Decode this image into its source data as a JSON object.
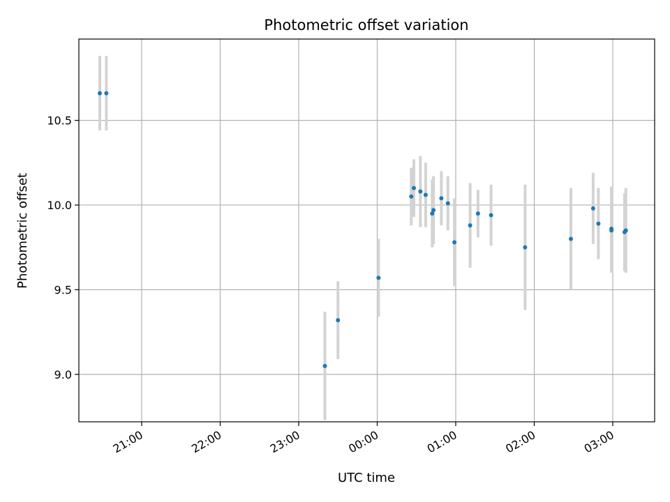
{
  "chart_data": {
    "type": "scatter",
    "title": "Photometric offset variation",
    "xlabel": "UTC time",
    "ylabel": "Photometric offset",
    "x_tick_labels": [
      "21:00",
      "22:00",
      "23:00",
      "00:00",
      "01:00",
      "02:00",
      "03:00"
    ],
    "y_tick_labels": [
      "9.0",
      "9.5",
      "10.0",
      "10.5"
    ],
    "y_ticks": [
      9.0,
      9.5,
      10.0,
      10.5
    ],
    "x_ticks": [
      "20:00:00",
      "21:00:00",
      "22:00:00",
      "23:00:00",
      "00:00:00",
      "01:00:00",
      "02:00:00",
      "03:00:00"
    ],
    "xlim": [
      "20:12",
      "03:32"
    ],
    "ylim": [
      8.72,
      10.98
    ],
    "grid": true,
    "colors": {
      "marker": "#1f77b4",
      "errorbar": "#d3d3d3",
      "grid": "#b0b0b0"
    },
    "series": [
      {
        "points": [
          {
            "x": "20:28",
            "y": 10.66,
            "yerr": 0.22
          },
          {
            "x": "20:33",
            "y": 10.66,
            "yerr": 0.22
          },
          {
            "x": "23:20",
            "y": 9.05,
            "yerr": 0.32
          },
          {
            "x": "23:30",
            "y": 9.32,
            "yerr": 0.23
          },
          {
            "x": "00:01",
            "y": 9.57,
            "yerr": 0.23
          },
          {
            "x": "00:26",
            "y": 10.05,
            "yerr": 0.17
          },
          {
            "x": "00:28",
            "y": 10.1,
            "yerr": 0.17
          },
          {
            "x": "00:33",
            "y": 10.08,
            "yerr": 0.21
          },
          {
            "x": "00:37",
            "y": 10.06,
            "yerr": 0.19
          },
          {
            "x": "00:42",
            "y": 9.95,
            "yerr": 0.2
          },
          {
            "x": "00:43",
            "y": 9.97,
            "yerr": 0.2
          },
          {
            "x": "00:49",
            "y": 10.04,
            "yerr": 0.16
          },
          {
            "x": "00:54",
            "y": 10.01,
            "yerr": 0.16
          },
          {
            "x": "00:59",
            "y": 9.78,
            "yerr": 0.26
          },
          {
            "x": "01:11",
            "y": 9.88,
            "yerr": 0.25
          },
          {
            "x": "01:17",
            "y": 9.95,
            "yerr": 0.14
          },
          {
            "x": "01:27",
            "y": 9.94,
            "yerr": 0.18
          },
          {
            "x": "01:53",
            "y": 9.75,
            "yerr": 0.37
          },
          {
            "x": "02:28",
            "y": 9.8,
            "yerr": 0.3
          },
          {
            "x": "02:45",
            "y": 9.98,
            "yerr": 0.21
          },
          {
            "x": "02:49",
            "y": 9.89,
            "yerr": 0.21
          },
          {
            "x": "02:59",
            "y": 9.85,
            "yerr": 0.25
          },
          {
            "x": "02:59",
            "y": 9.86,
            "yerr": 0.25
          },
          {
            "x": "03:09",
            "y": 9.84,
            "yerr": 0.23
          },
          {
            "x": "03:10",
            "y": 9.85,
            "yerr": 0.25
          }
        ]
      }
    ]
  }
}
